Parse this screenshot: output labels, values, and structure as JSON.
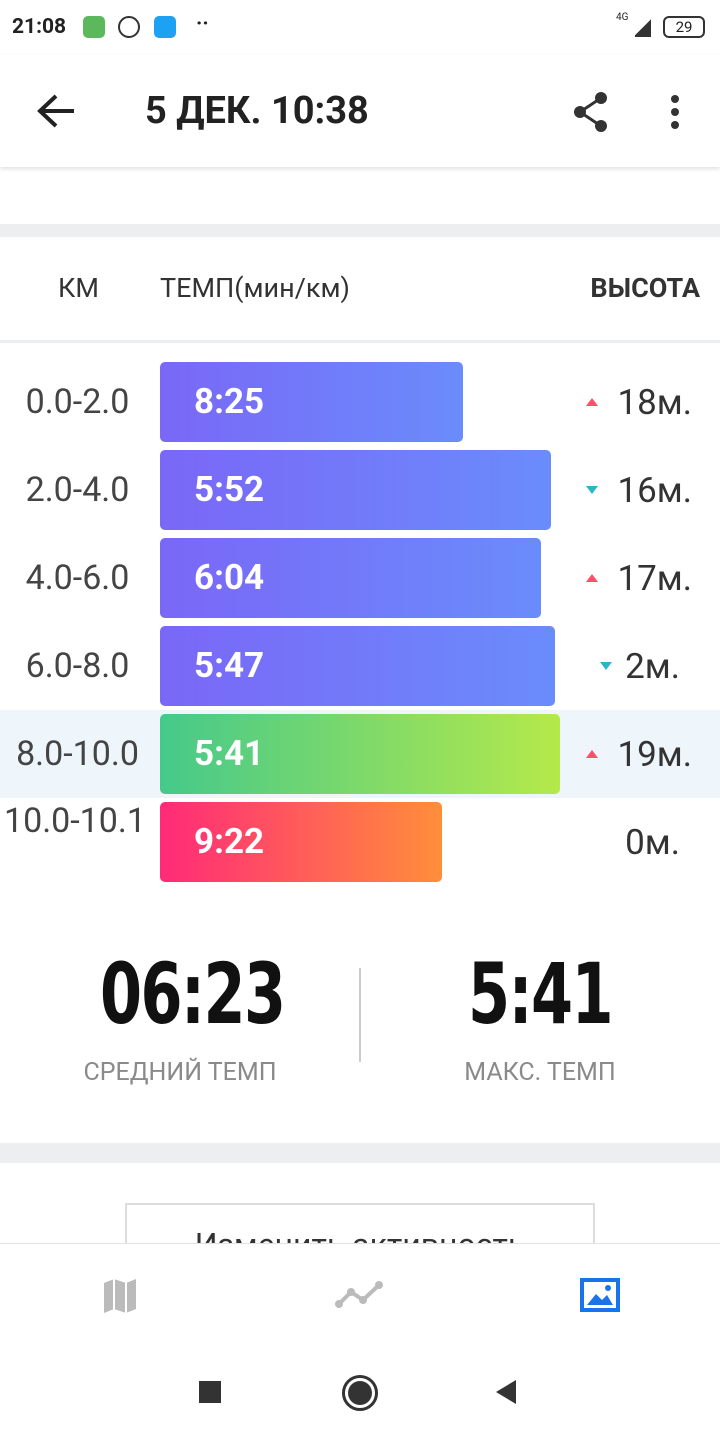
{
  "status_bar": {
    "time": "21:08",
    "battery": "29",
    "network": "4G"
  },
  "app_bar": {
    "title": "5 ДЕК. 10:38"
  },
  "table": {
    "headers": [
      "КМ",
      "ТЕМП(мин/км)",
      "ВЫСОТА"
    ],
    "rows": [
      {
        "km": "0.0-2.0",
        "pace": "8:25",
        "elevation": "18м.",
        "trend": "up",
        "colors": [
          "#7a67f7",
          "#6a8cfb"
        ]
      },
      {
        "km": "2.0-4.0",
        "pace": "5:52",
        "elevation": "16м.",
        "trend": "down",
        "colors": [
          "#7a67f7",
          "#6a8cfb"
        ]
      },
      {
        "km": "4.0-6.0",
        "pace": "6:04",
        "elevation": "17м.",
        "trend": "up",
        "colors": [
          "#7a67f7",
          "#6a8cfb"
        ]
      },
      {
        "km": "6.0-8.0",
        "pace": "5:47",
        "elevation": "2м.",
        "trend": "down",
        "colors": [
          "#7a67f7",
          "#6a8cfb"
        ]
      },
      {
        "km": "8.0-10.0",
        "pace": "5:41",
        "elevation": "19м.",
        "trend": "up",
        "colors": [
          "#45c98b",
          "#b5e94a"
        ]
      },
      {
        "km": "10.0-10.1",
        "pace": "9:22",
        "elevation": "0м.",
        "trend": null,
        "colors": [
          "#ff2a79",
          "#ff8e3a"
        ]
      }
    ],
    "highlight_row": 4
  },
  "summary": {
    "average": {
      "value": "06:23",
      "label": "СРЕДНИЙ ТЕМП"
    },
    "max": {
      "value": "5:41",
      "label": "МАКС. ТЕМП"
    }
  },
  "button": {
    "label": "Изменить активность"
  }
}
